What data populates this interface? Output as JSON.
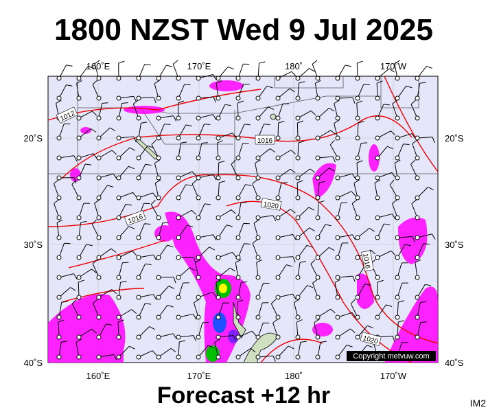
{
  "title": "1800 NZST Wed 9 Jul 2025",
  "map": {
    "longitude_labels": [
      "160˚E",
      "170˚E",
      "180˚",
      "170˚W"
    ],
    "latitude_labels": [
      "20˚S",
      "30˚S",
      "40˚S"
    ],
    "isobar_labels": [
      "1012",
      "1016",
      "1020",
      "1016",
      "1016",
      "1020"
    ],
    "copyright": "Copyright metvuw.com"
  },
  "footer": {
    "caption": "Forecast +12 hr",
    "code": "IM2"
  }
}
